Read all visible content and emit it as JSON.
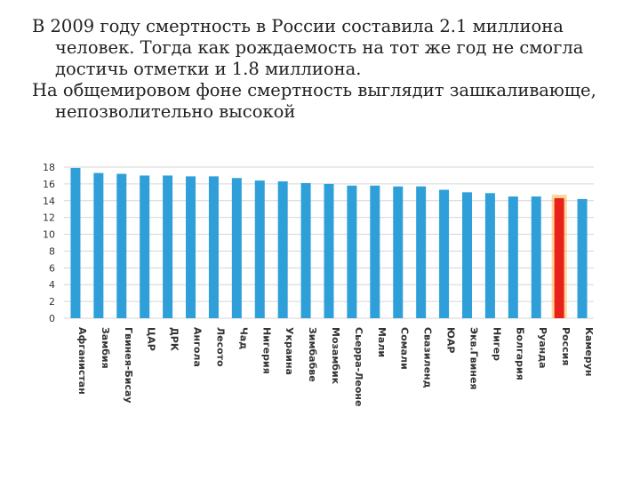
{
  "slide": {
    "paragraphs": [
      "В 2009 году смертность в России составила 2.1 миллиона человек. Тогда как рождаемость на тот же год не смогла достичь отметки и 1.8 миллиона.",
      "На общемировом фоне смертность выглядит зашкаливающе, непозволительно высокой"
    ]
  },
  "colors": {
    "bar": "#2e9fd8",
    "highlight": "#e8221b",
    "glow": "#ffb347",
    "grid": "#d6d6d6"
  },
  "chart_data": {
    "type": "bar",
    "title": "",
    "xlabel": "",
    "ylabel": "",
    "ylim": [
      0,
      18
    ],
    "yticks": [
      0,
      2,
      4,
      6,
      8,
      10,
      12,
      14,
      16,
      18
    ],
    "categories": [
      "Афганистан",
      "Замбия",
      "Гвинея-Бисау",
      "ЦАР",
      "ДРК",
      "Ангола",
      "Лесото",
      "Чад",
      "Нигерия",
      "Украина",
      "Зимбабве",
      "Мозамбик",
      "Сьерра-Леоне",
      "Мали",
      "Сомали",
      "Свазиленд",
      "ЮАР",
      "Экв.Гвинея",
      "Нигер",
      "Болгария",
      "Руанда",
      "Россия",
      "Камерун"
    ],
    "values": [
      17.9,
      17.3,
      17.2,
      17.0,
      17.0,
      16.9,
      16.9,
      16.7,
      16.4,
      16.3,
      16.1,
      16.0,
      15.8,
      15.8,
      15.7,
      15.7,
      15.3,
      15.0,
      14.9,
      14.5,
      14.5,
      14.3,
      14.2
    ],
    "highlight": "Россия",
    "grid": true
  }
}
